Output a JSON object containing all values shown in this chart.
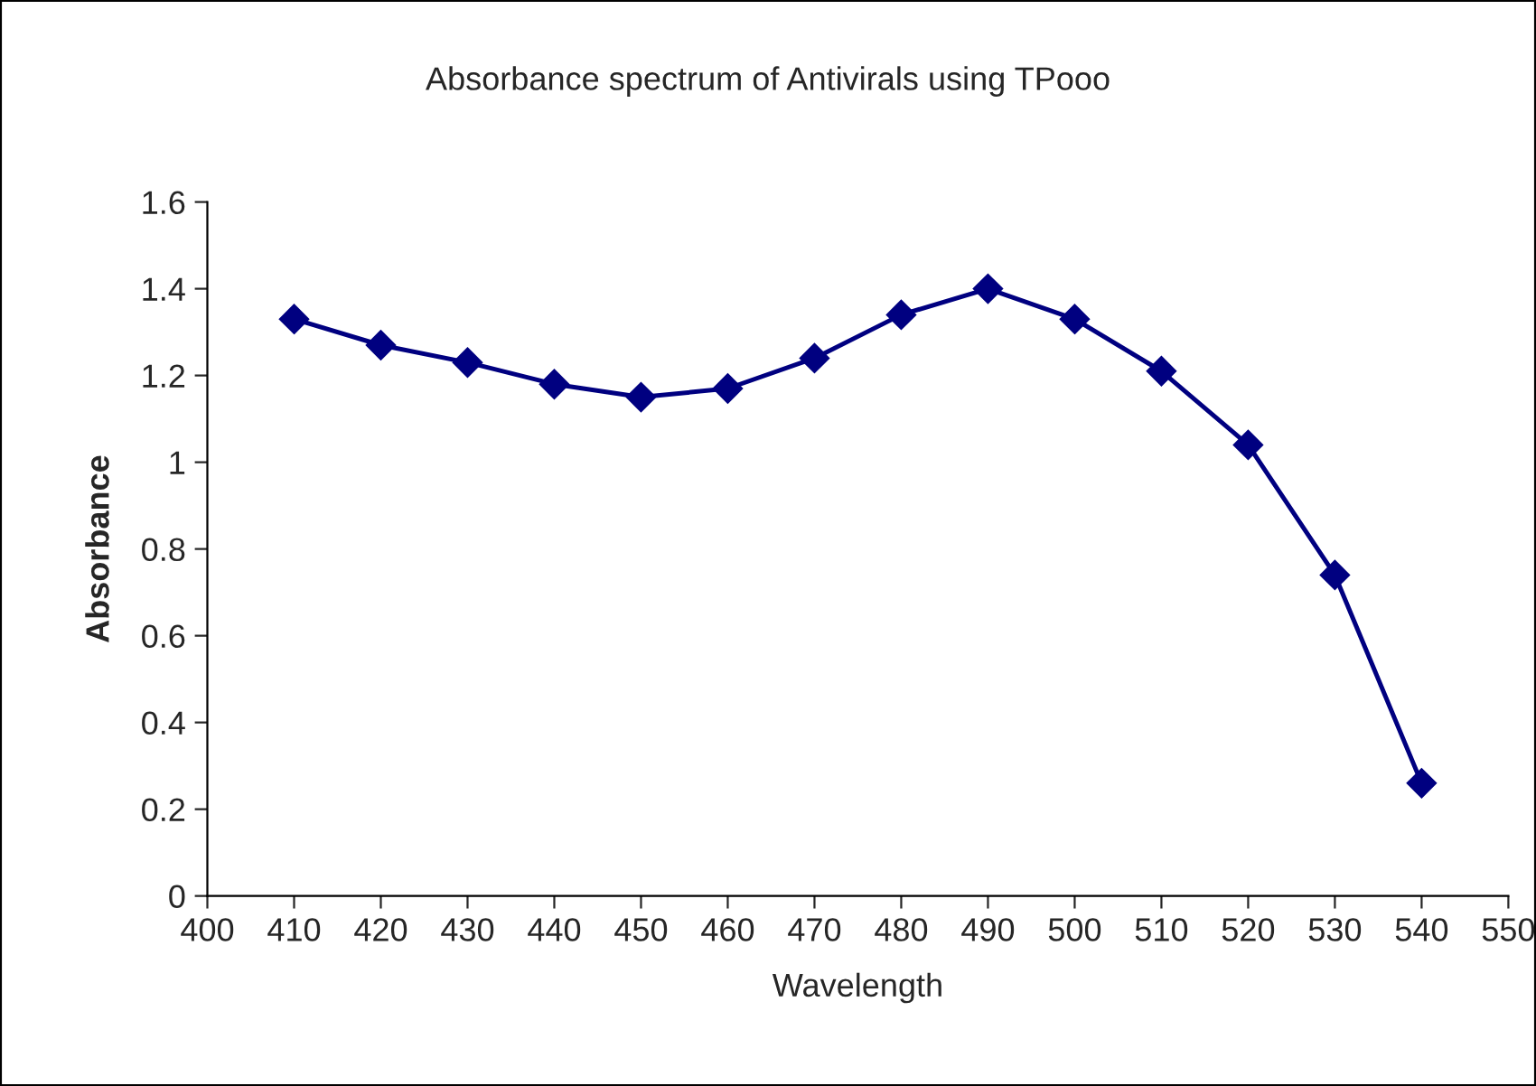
{
  "chart_data": {
    "type": "line",
    "title": "Absorbance spectrum of Antivirals using TPooo",
    "xlabel": "Wavelength",
    "ylabel": "Absorbance",
    "x": [
      410,
      420,
      430,
      440,
      450,
      460,
      470,
      480,
      490,
      500,
      510,
      520,
      530,
      540
    ],
    "series": [
      {
        "color": "#000080",
        "values": [
          1.33,
          1.27,
          1.23,
          1.18,
          1.15,
          1.17,
          1.24,
          1.34,
          1.4,
          1.33,
          1.21,
          1.04,
          0.74,
          0.26
        ]
      }
    ],
    "xlim": [
      400,
      550
    ],
    "xticks": [
      400,
      410,
      420,
      430,
      440,
      450,
      460,
      470,
      480,
      490,
      500,
      510,
      520,
      530,
      540,
      550
    ],
    "ylim": [
      0,
      1.6
    ],
    "yticks": [
      0,
      {
        "value": 0.2,
        "label": "0.2"
      },
      {
        "value": 0.4,
        "label": "0.4"
      },
      {
        "value": 0.6,
        "label": "0.6"
      },
      {
        "value": 0.8,
        "label": "0.8"
      },
      1,
      {
        "value": 1.2,
        "label": "1.2"
      },
      {
        "value": 1.4,
        "label": "1.4"
      },
      {
        "value": 1.6,
        "label": "1.6"
      }
    ],
    "marker": "diamond",
    "line_style": "solid"
  }
}
